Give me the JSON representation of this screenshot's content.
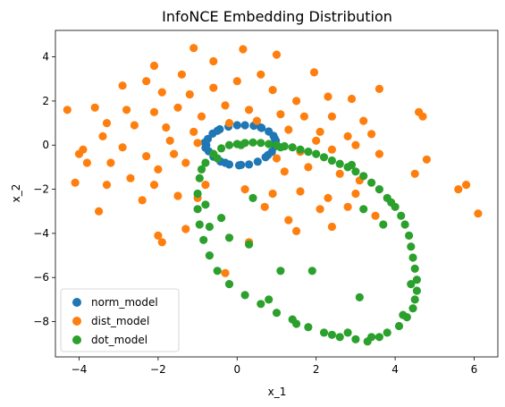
{
  "chart_data": {
    "type": "scatter",
    "title": "InfoNCE Embedding Distribution",
    "xlabel": "x_1",
    "ylabel": "x_2",
    "xlim": [
      -4.6,
      6.6
    ],
    "ylim": [
      -9.6,
      5.2
    ],
    "xticks": [
      -4,
      -2,
      0,
      2,
      4,
      6
    ],
    "yticks": [
      -8,
      -6,
      -4,
      -2,
      0,
      2,
      4
    ],
    "grid": false,
    "legend_position": "lower-left",
    "series": [
      {
        "name": "norm_model",
        "color": "#1f77b4",
        "points": [
          [
            0.2,
            0.9
          ],
          [
            0.42,
            0.88
          ],
          [
            0.62,
            0.78
          ],
          [
            0.8,
            0.62
          ],
          [
            0.92,
            0.42
          ],
          [
            0.98,
            0.2
          ],
          [
            0.96,
            -0.05
          ],
          [
            0.88,
            -0.3
          ],
          [
            0.72,
            -0.55
          ],
          [
            0.52,
            -0.75
          ],
          [
            0.3,
            -0.88
          ],
          [
            0.05,
            -0.92
          ],
          [
            -0.2,
            -0.88
          ],
          [
            -0.42,
            -0.74
          ],
          [
            -0.6,
            -0.52
          ],
          [
            -0.72,
            -0.28
          ],
          [
            -0.78,
            0.0
          ],
          [
            -0.74,
            0.28
          ],
          [
            -0.62,
            0.52
          ],
          [
            -0.44,
            0.72
          ],
          [
            -0.22,
            0.84
          ],
          [
            0.0,
            0.9
          ],
          [
            -0.82,
            0.12
          ],
          [
            -0.8,
            -0.12
          ],
          [
            0.95,
            0.3
          ],
          [
            0.78,
            -0.45
          ],
          [
            -0.5,
            0.65
          ],
          [
            0.1,
            -0.9
          ],
          [
            0.6,
            0.8
          ],
          [
            -0.3,
            -0.8
          ]
        ]
      },
      {
        "name": "dist_model",
        "color": "#ff7f0e",
        "points": [
          [
            -1.1,
            4.4
          ],
          [
            0.15,
            4.35
          ],
          [
            -0.6,
            3.8
          ],
          [
            1.0,
            4.1
          ],
          [
            -2.1,
            3.6
          ],
          [
            -1.4,
            3.2
          ],
          [
            1.95,
            3.3
          ],
          [
            -2.3,
            2.9
          ],
          [
            -1.9,
            2.4
          ],
          [
            -1.2,
            2.3
          ],
          [
            -0.6,
            2.6
          ],
          [
            0.0,
            2.9
          ],
          [
            0.6,
            3.2
          ],
          [
            0.9,
            2.5
          ],
          [
            1.5,
            2.0
          ],
          [
            2.3,
            2.2
          ],
          [
            2.9,
            2.1
          ],
          [
            3.6,
            2.55
          ],
          [
            -2.9,
            2.7
          ],
          [
            -3.6,
            1.7
          ],
          [
            -2.8,
            1.6
          ],
          [
            -2.1,
            1.5
          ],
          [
            -1.5,
            1.7
          ],
          [
            -0.9,
            1.3
          ],
          [
            -0.3,
            1.8
          ],
          [
            0.3,
            1.6
          ],
          [
            1.1,
            1.4
          ],
          [
            1.7,
            1.3
          ],
          [
            2.4,
            1.3
          ],
          [
            3.2,
            1.1
          ],
          [
            -4.3,
            1.6
          ],
          [
            -3.3,
            1.0
          ],
          [
            -2.6,
            0.9
          ],
          [
            -1.8,
            0.8
          ],
          [
            -1.1,
            0.6
          ],
          [
            1.3,
            0.7
          ],
          [
            2.1,
            0.6
          ],
          [
            2.8,
            0.4
          ],
          [
            3.4,
            0.5
          ],
          [
            -3.9,
            -0.2
          ],
          [
            -4.0,
            -0.4
          ],
          [
            -3.4,
            0.4
          ],
          [
            -2.9,
            -0.1
          ],
          [
            -2.3,
            -0.5
          ],
          [
            -1.6,
            -0.4
          ],
          [
            -1.0,
            0.1
          ],
          [
            1.6,
            -0.3
          ],
          [
            2.4,
            -0.2
          ],
          [
            3.0,
            0.0
          ],
          [
            3.6,
            -0.4
          ],
          [
            -3.8,
            -0.8
          ],
          [
            -3.2,
            -0.8
          ],
          [
            -2.7,
            -1.5
          ],
          [
            -2.0,
            -1.1
          ],
          [
            -1.3,
            -0.8
          ],
          [
            1.2,
            -1.2
          ],
          [
            1.8,
            -1.0
          ],
          [
            2.6,
            -1.3
          ],
          [
            3.1,
            -1.6
          ],
          [
            -4.1,
            -1.7
          ],
          [
            -3.3,
            -1.8
          ],
          [
            -2.1,
            -1.8
          ],
          [
            -1.5,
            -2.3
          ],
          [
            -0.8,
            -1.8
          ],
          [
            0.2,
            -2.0
          ],
          [
            0.9,
            -2.2
          ],
          [
            1.6,
            -2.1
          ],
          [
            2.3,
            -2.4
          ],
          [
            3.0,
            -2.2
          ],
          [
            -3.5,
            -3.0
          ],
          [
            -2.4,
            -2.5
          ],
          [
            -1.0,
            -2.4
          ],
          [
            0.7,
            -2.8
          ],
          [
            1.3,
            -3.4
          ],
          [
            2.1,
            -2.9
          ],
          [
            2.8,
            -2.8
          ],
          [
            -2.0,
            -4.1
          ],
          [
            -1.9,
            -4.4
          ],
          [
            -1.3,
            -3.8
          ],
          [
            0.3,
            -4.4
          ],
          [
            1.5,
            -3.9
          ],
          [
            2.4,
            -3.7
          ],
          [
            -0.3,
            -5.8
          ],
          [
            4.8,
            -0.65
          ],
          [
            4.7,
            1.3
          ],
          [
            4.6,
            1.5
          ],
          [
            5.8,
            -1.8
          ],
          [
            5.6,
            -2.0
          ],
          [
            6.1,
            -3.1
          ],
          [
            4.5,
            -1.3
          ],
          [
            3.5,
            -3.2
          ],
          [
            0.5,
            1.1
          ],
          [
            -0.2,
            1.0
          ],
          [
            2.0,
            0.2
          ],
          [
            -1.7,
            0.2
          ],
          [
            1.0,
            -0.6
          ]
        ]
      },
      {
        "name": "dot_model",
        "color": "#2ca02c",
        "points": [
          [
            -0.8,
            -0.8
          ],
          [
            -0.6,
            -0.4
          ],
          [
            -0.4,
            -0.15
          ],
          [
            -0.2,
            0.0
          ],
          [
            0.0,
            0.05
          ],
          [
            0.2,
            0.1
          ],
          [
            0.4,
            0.12
          ],
          [
            0.6,
            0.1
          ],
          [
            0.8,
            0.05
          ],
          [
            1.0,
            0.0
          ],
          [
            1.2,
            -0.05
          ],
          [
            1.4,
            -0.1
          ],
          [
            1.6,
            -0.2
          ],
          [
            1.8,
            -0.3
          ],
          [
            2.0,
            -0.4
          ],
          [
            2.2,
            -0.55
          ],
          [
            2.4,
            -0.7
          ],
          [
            2.6,
            -0.85
          ],
          [
            2.8,
            -1.0
          ],
          [
            3.0,
            -1.2
          ],
          [
            3.2,
            -1.4
          ],
          [
            3.4,
            -1.7
          ],
          [
            3.6,
            -2.0
          ],
          [
            3.8,
            -2.4
          ],
          [
            4.0,
            -2.8
          ],
          [
            4.15,
            -3.2
          ],
          [
            4.25,
            -3.6
          ],
          [
            4.35,
            -4.1
          ],
          [
            4.4,
            -4.6
          ],
          [
            4.45,
            -5.1
          ],
          [
            4.5,
            -5.6
          ],
          [
            4.55,
            -6.1
          ],
          [
            4.55,
            -6.6
          ],
          [
            4.5,
            -7.0
          ],
          [
            4.45,
            -7.4
          ],
          [
            4.3,
            -7.8
          ],
          [
            4.1,
            -8.2
          ],
          [
            3.8,
            -8.5
          ],
          [
            3.4,
            -8.7
          ],
          [
            3.0,
            -8.8
          ],
          [
            2.6,
            -8.7
          ],
          [
            2.2,
            -8.5
          ],
          [
            1.8,
            -8.25
          ],
          [
            1.4,
            -7.9
          ],
          [
            1.0,
            -7.6
          ],
          [
            0.6,
            -7.2
          ],
          [
            0.2,
            -6.8
          ],
          [
            -0.2,
            -6.3
          ],
          [
            -0.5,
            -5.7
          ],
          [
            -0.7,
            -5.0
          ],
          [
            -0.85,
            -4.3
          ],
          [
            -0.95,
            -3.6
          ],
          [
            -1.0,
            -2.9
          ],
          [
            -1.0,
            -2.2
          ],
          [
            -0.95,
            -1.5
          ],
          [
            -0.9,
            -1.1
          ],
          [
            -0.7,
            -3.7
          ],
          [
            -0.2,
            -4.2
          ],
          [
            0.3,
            -4.5
          ],
          [
            1.1,
            -5.7
          ],
          [
            1.9,
            -5.7
          ],
          [
            3.1,
            -6.9
          ],
          [
            0.4,
            -2.4
          ],
          [
            3.2,
            -2.9
          ],
          [
            3.7,
            -3.6
          ],
          [
            2.8,
            -8.5
          ],
          [
            3.3,
            -8.9
          ],
          [
            3.6,
            -8.7
          ],
          [
            4.2,
            -7.7
          ],
          [
            4.4,
            -6.3
          ],
          [
            0.8,
            -7.0
          ],
          [
            -0.4,
            -3.3
          ],
          [
            -0.8,
            -2.7
          ],
          [
            1.5,
            -8.1
          ],
          [
            2.4,
            -8.6
          ],
          [
            3.9,
            -2.6
          ],
          [
            2.9,
            -0.9
          ],
          [
            -0.5,
            -0.6
          ],
          [
            0.1,
            0.0
          ],
          [
            1.1,
            -0.1
          ]
        ]
      }
    ]
  }
}
